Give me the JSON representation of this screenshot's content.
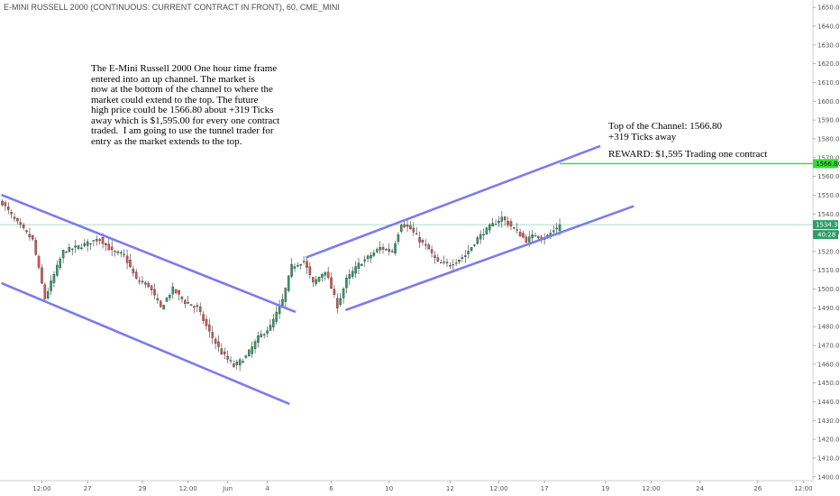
{
  "chart_title": "E-MINI RUSSELL 2000 (CONTINUOUS: CURRENT CONTRACT IN FRONT), 60, CME_MINI",
  "annotations": {
    "main": "The E-Mini Russell 2000 One hour time frame\nentered into an up channel. The market is\nnow at the bottom of the channel to where the\nmarket could extend to the top. The future\nhigh price could be 1566.80 about +319 Ticks\naway which is $1,595.00 for every one contract\ntraded.  I am going to use the tunnel trader for\nentry as the market extends to the top.",
    "top_of_channel": "Top of the Channel: 1566.80\n+319 Ticks away",
    "reward": "REWARD: $1,595 Trading one contract"
  },
  "chart_data": {
    "type": "candlestick",
    "y_axis_ticks": [
      1400,
      1410,
      1420,
      1430,
      1440,
      1450,
      1460,
      1470,
      1480,
      1490,
      1500,
      1510,
      1520,
      1530,
      1540,
      1550,
      1560,
      1570,
      1580,
      1590,
      1600,
      1610,
      1620,
      1630,
      1640,
      1650
    ],
    "ylim": [
      1398,
      1652
    ],
    "x_axis_labels": [
      {
        "label": "12:00",
        "bar": 13
      },
      {
        "label": "27",
        "bar": 28
      },
      {
        "label": "29",
        "bar": 46
      },
      {
        "label": "12:00",
        "bar": 61
      },
      {
        "label": "Jun",
        "bar": 74
      },
      {
        "label": "4",
        "bar": 87
      },
      {
        "label": "6",
        "bar": 108
      },
      {
        "label": "10",
        "bar": 127
      },
      {
        "label": "12",
        "bar": 147
      },
      {
        "label": "12:00",
        "bar": 163
      },
      {
        "label": "17",
        "bar": 178
      },
      {
        "label": "19",
        "bar": 198
      },
      {
        "label": "12:00",
        "bar": 213
      },
      {
        "label": "24",
        "bar": 229
      },
      {
        "label": "26",
        "bar": 248
      },
      {
        "label": "12:00",
        "bar": 263
      }
    ],
    "price_path": [
      [
        0,
        1546
      ],
      [
        4,
        1537
      ],
      [
        10,
        1526
      ],
      [
        14,
        1495
      ],
      [
        20,
        1520
      ],
      [
        26,
        1523
      ],
      [
        32,
        1527
      ],
      [
        36,
        1520
      ],
      [
        40,
        1518
      ],
      [
        44,
        1505
      ],
      [
        48,
        1502
      ],
      [
        52,
        1490
      ],
      [
        56,
        1500
      ],
      [
        60,
        1493
      ],
      [
        64,
        1490
      ],
      [
        68,
        1477
      ],
      [
        72,
        1466
      ],
      [
        76,
        1459
      ],
      [
        80,
        1464
      ],
      [
        84,
        1474
      ],
      [
        88,
        1480
      ],
      [
        92,
        1494
      ],
      [
        95,
        1512
      ],
      [
        99,
        1515
      ],
      [
        102,
        1503
      ],
      [
        106,
        1510
      ],
      [
        110,
        1491
      ],
      [
        113,
        1505
      ],
      [
        117,
        1513
      ],
      [
        121,
        1518
      ],
      [
        124,
        1522
      ],
      [
        128,
        1520
      ],
      [
        131,
        1535
      ],
      [
        134,
        1532
      ],
      [
        137,
        1526
      ],
      [
        140,
        1521
      ],
      [
        143,
        1514
      ],
      [
        147,
        1513
      ],
      [
        152,
        1518
      ],
      [
        156,
        1527
      ],
      [
        160,
        1533
      ],
      [
        164,
        1538
      ],
      [
        168,
        1532
      ],
      [
        172,
        1526
      ],
      [
        175,
        1529
      ],
      [
        178,
        1527
      ],
      [
        181,
        1531
      ],
      [
        183,
        1535
      ]
    ],
    "channels": [
      {
        "name": "down-channel-upper",
        "from": [
          0,
          1550
        ],
        "to": [
          96,
          1488
        ]
      },
      {
        "name": "down-channel-lower",
        "from": [
          0,
          1503
        ],
        "to": [
          94,
          1439
        ]
      },
      {
        "name": "up-channel-upper",
        "from": [
          100,
          1517
        ],
        "to": [
          196,
          1576
        ]
      },
      {
        "name": "up-channel-lower",
        "from": [
          113,
          1489
        ],
        "to": [
          207,
          1544
        ]
      }
    ],
    "channel_color": "#7b7bf0",
    "target_line": {
      "price": 1566.8,
      "from_bar": 183,
      "label": "1566.80",
      "color": "#33dd33"
    },
    "current_price": {
      "price": 1534.3,
      "label": "1534.30",
      "countdown": "40:28",
      "color": "#2e9e66"
    },
    "colors": {
      "up": "#2e9e66",
      "down": "#d9534f",
      "wick": "#333333"
    }
  }
}
